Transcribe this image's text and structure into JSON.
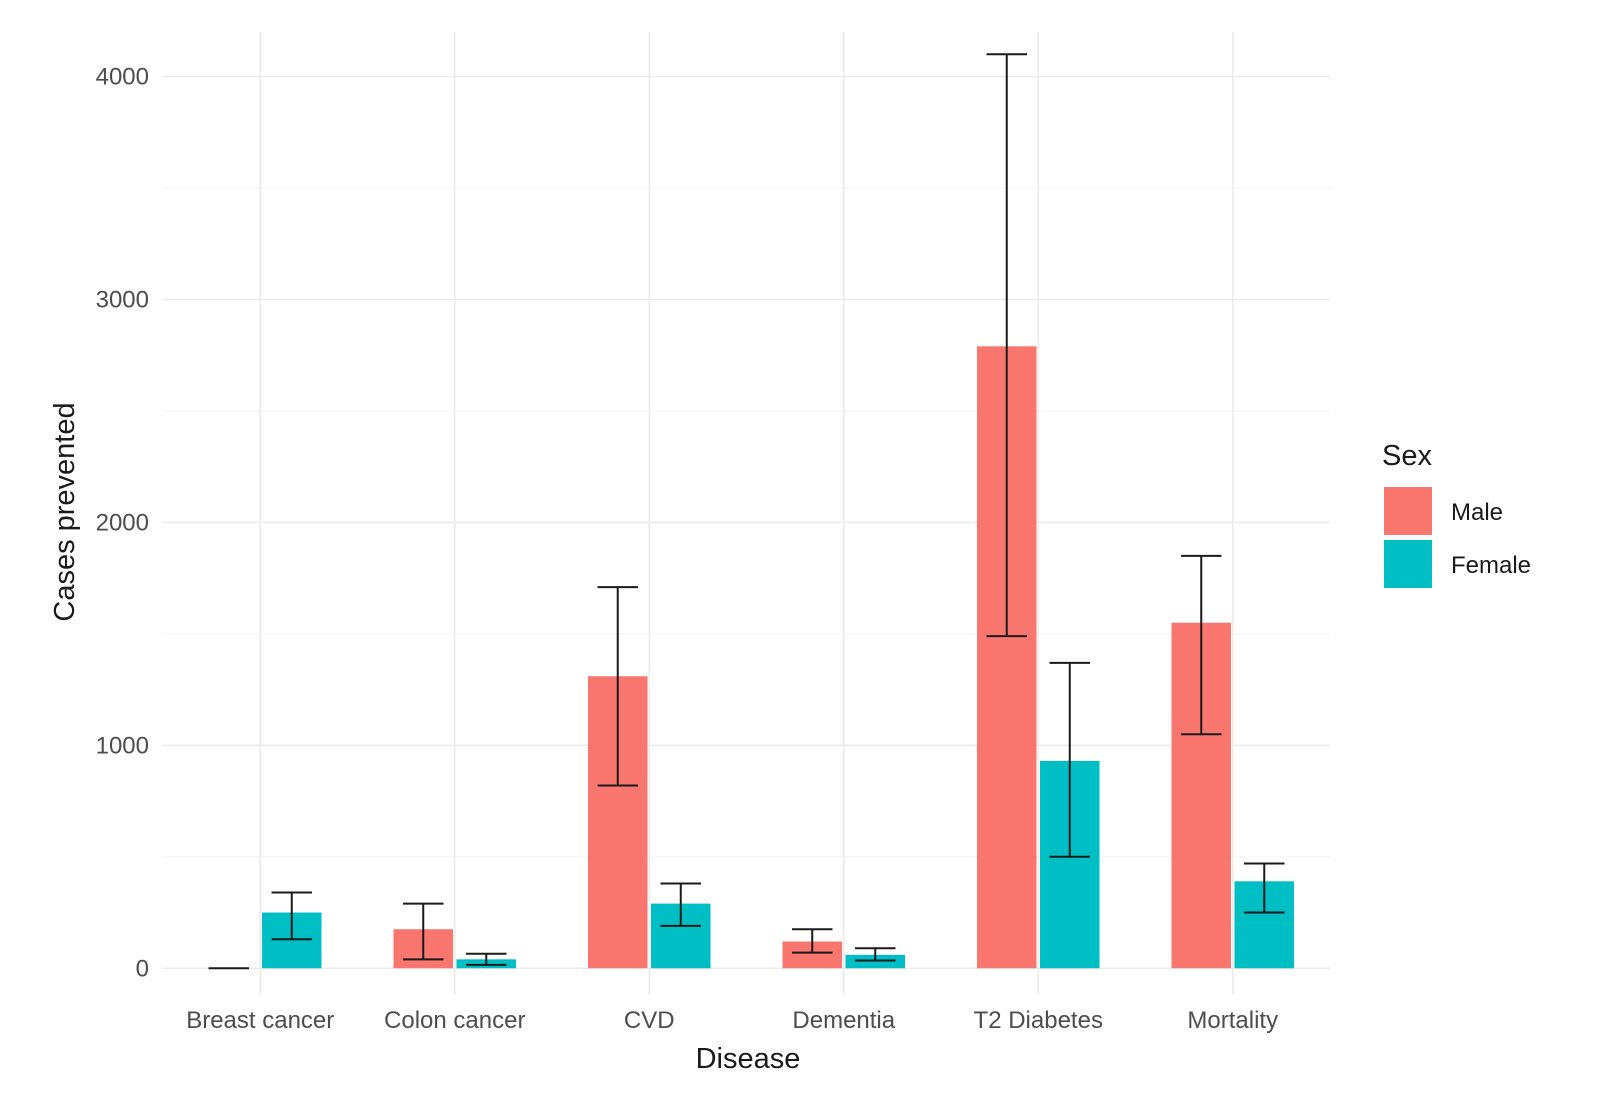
{
  "chart_data": {
    "type": "bar",
    "title": "",
    "xlabel": "Disease",
    "ylabel": "Cases prevented",
    "categories": [
      "Breast cancer",
      "Colon cancer",
      "CVD",
      "Dementia",
      "T2 Diabetes",
      "Mortality"
    ],
    "ylim": [
      -120,
      4200
    ],
    "yticks": [
      0,
      1000,
      2000,
      3000,
      4000
    ],
    "grid": true,
    "legend": {
      "title": "Sex",
      "position": "right"
    },
    "series": [
      {
        "name": "Male",
        "color": "#F8766D",
        "values": [
          0,
          175,
          1310,
          120,
          2790,
          1550
        ],
        "error_low": [
          0,
          40,
          820,
          70,
          1490,
          1050
        ],
        "error_high": [
          0,
          290,
          1710,
          175,
          4100,
          1850
        ]
      },
      {
        "name": "Female",
        "color": "#00BFC4",
        "values": [
          250,
          40,
          290,
          60,
          930,
          390
        ],
        "error_low": [
          130,
          15,
          190,
          35,
          500,
          250
        ],
        "error_high": [
          340,
          65,
          380,
          90,
          1370,
          470
        ]
      }
    ]
  }
}
